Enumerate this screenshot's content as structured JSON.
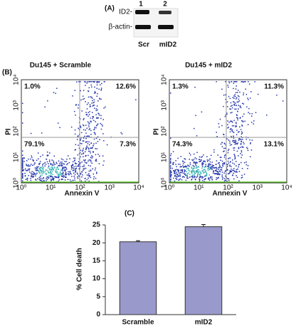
{
  "panel_a": {
    "label": "(A)",
    "lanes": [
      "1",
      "2"
    ],
    "bands": [
      "ID2-",
      "β-actin-"
    ],
    "samples": [
      "Scr",
      "mID2"
    ]
  },
  "panel_b": {
    "label": "(B)",
    "x_label": "Annexin V",
    "y_label": "PI",
    "ticks": [
      "10⁰",
      "10¹",
      "10²",
      "10³",
      "10⁴"
    ],
    "plots": [
      {
        "title": "Du145 + Scramble",
        "quadrants": [
          "1.0%",
          "12.6%",
          "79.1%",
          "7.3%"
        ]
      },
      {
        "title": "Du145 + mID2",
        "quadrants": [
          "1.3%",
          "11.3%",
          "74.3%",
          "13.1%"
        ]
      }
    ]
  },
  "chart_data": {
    "type": "bar",
    "label": "(C)",
    "y_label": "% Cell death",
    "categories": [
      "Scramble",
      "mID2"
    ],
    "values": [
      20.3,
      24.5
    ],
    "errors": [
      0.3,
      0.6
    ],
    "color": "#9999cc",
    "ylim": [
      0,
      25
    ],
    "yticks": [
      0,
      5,
      10,
      15,
      20,
      25
    ]
  }
}
